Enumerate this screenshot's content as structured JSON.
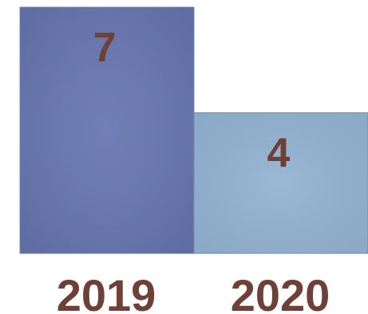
{
  "chart_data": {
    "type": "bar",
    "categories": [
      "2019",
      "2020"
    ],
    "values": [
      7,
      4
    ],
    "data_labels": [
      "7",
      "4"
    ],
    "title": "",
    "xlabel": "",
    "ylabel": "",
    "ylim": [
      0,
      7
    ],
    "grid": false,
    "legend": "none",
    "bar_colors": [
      "#6777b0",
      "#92b3d2"
    ],
    "bar_edge_color": "#7c88b8",
    "label_color": "#6e4036"
  }
}
